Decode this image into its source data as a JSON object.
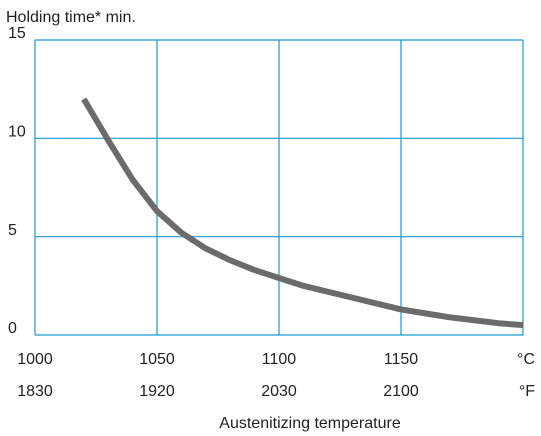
{
  "chart_data": {
    "type": "line",
    "y_label": "Holding time* min.",
    "x_label": "Austenitizing temperature",
    "x": [
      1020,
      1030,
      1040,
      1050,
      1060,
      1070,
      1080,
      1090,
      1100,
      1110,
      1120,
      1130,
      1140,
      1150,
      1160,
      1170,
      1180,
      1190,
      1200
    ],
    "series": [
      {
        "color": "#6b6b6b",
        "values": [
          12,
          9.9,
          7.9,
          6.3,
          5.2,
          4.4,
          3.8,
          3.3,
          2.9,
          2.5,
          2.2,
          1.9,
          1.6,
          1.3,
          1.1,
          0.9,
          0.75,
          0.6,
          0.5
        ]
      }
    ],
    "xlim": [
      1000,
      1200
    ],
    "xticks": [
      1000,
      1050,
      1100,
      1150,
      {
        "value": 1200,
        "label": "°C"
      }
    ],
    "x2labels": [
      "1830",
      "1920",
      "2030",
      "2100",
      "°F"
    ],
    "ylim": [
      0,
      15
    ],
    "yticks": [
      0,
      5,
      10,
      15
    ],
    "grid": true,
    "grid_color": "#1a9ad6"
  }
}
